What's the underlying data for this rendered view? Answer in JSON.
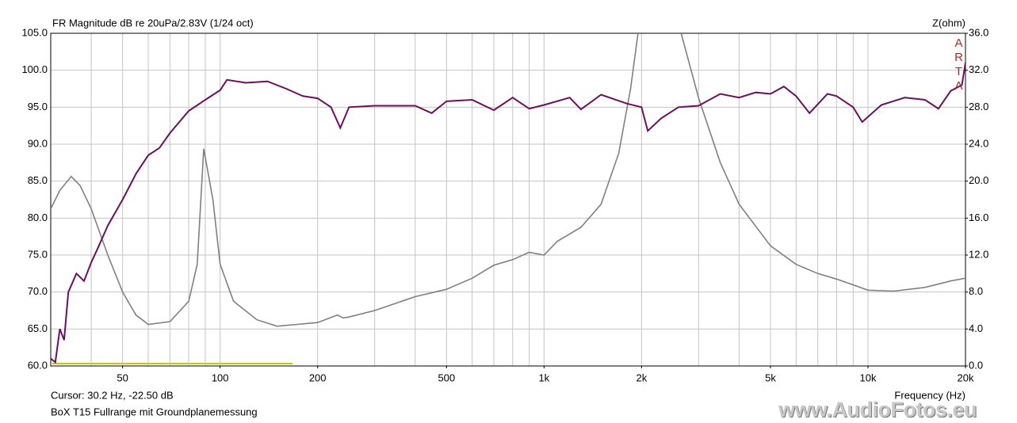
{
  "chart_data": {
    "type": "line",
    "title": "FR Magnitude dB re 20uPa/2.83V (1/24 oct)",
    "y2label": "Z(ohm)",
    "xlabel": "Frequency (Hz)",
    "logo": "ARTA",
    "cursor": "Cursor: 30.2 Hz, -22.50 dB",
    "caption": "BoX T15 Fullrange mit Groundplanemessung",
    "watermark": "www.AudioFotos.eu",
    "xlog": true,
    "grid": true,
    "xlim": [
      30,
      20000
    ],
    "ylim": [
      60,
      105
    ],
    "y2lim": [
      0,
      36
    ],
    "xticks": [
      50,
      100,
      200,
      500,
      {
        "value": 1000,
        "label": "1k"
      },
      {
        "value": 2000,
        "label": "2k"
      },
      {
        "value": 5000,
        "label": "5k"
      },
      {
        "value": 10000,
        "label": "10k"
      },
      {
        "value": 20000,
        "label": "20k"
      }
    ],
    "xgrid": [
      40,
      50,
      60,
      70,
      80,
      90,
      100,
      200,
      300,
      400,
      500,
      600,
      700,
      800,
      900,
      1000,
      2000,
      3000,
      4000,
      5000,
      6000,
      7000,
      8000,
      9000,
      10000
    ],
    "yticks": [
      {
        "value": 60,
        "label": "60.0"
      },
      {
        "value": 65,
        "label": "65.0"
      },
      {
        "value": 70,
        "label": "70.0"
      },
      {
        "value": 75,
        "label": "75.0"
      },
      {
        "value": 80,
        "label": "80.0"
      },
      {
        "value": 85,
        "label": "85.0"
      },
      {
        "value": 90,
        "label": "90.0"
      },
      {
        "value": 95,
        "label": "95.0"
      },
      {
        "value": 100,
        "label": "100.0"
      },
      {
        "value": 105,
        "label": "105.0"
      }
    ],
    "y2ticks": [
      {
        "value": 0,
        "label": "0.0"
      },
      {
        "value": 4,
        "label": "4.0"
      },
      {
        "value": 8,
        "label": "8.0"
      },
      {
        "value": 12,
        "label": "12.0"
      },
      {
        "value": 16,
        "label": "16.0"
      },
      {
        "value": 20,
        "label": "20.0"
      },
      {
        "value": 24,
        "label": "24.0"
      },
      {
        "value": 28,
        "label": "28.0"
      },
      {
        "value": 32,
        "label": "32.0"
      },
      {
        "value": 36,
        "label": "36.0"
      }
    ],
    "series": [
      {
        "color": "#6b0f5e",
        "x": [
          30,
          31,
          32,
          33,
          34,
          36,
          38,
          40,
          42,
          45,
          50,
          55,
          60,
          65,
          70,
          80,
          90,
          100,
          105,
          120,
          140,
          160,
          180,
          200,
          220,
          235,
          250,
          300,
          400,
          450,
          500,
          600,
          700,
          800,
          900,
          1000,
          1200,
          1300,
          1500,
          1800,
          2000,
          2090,
          2300,
          2600,
          3000,
          3500,
          4000,
          4500,
          5000,
          5500,
          6000,
          6600,
          7500,
          8000,
          9000,
          9600,
          11000,
          13000,
          15000,
          16500,
          18000,
          19500,
          20000
        ],
        "values": [
          61,
          60.5,
          65,
          63.5,
          70,
          72.5,
          71.5,
          74,
          76,
          79,
          82.5,
          86,
          88.5,
          89.5,
          91.5,
          94.5,
          96,
          97.3,
          98.7,
          98.3,
          98.5,
          97.5,
          96.5,
          96.2,
          95,
          92.2,
          95,
          95.2,
          95.2,
          94.2,
          95.8,
          96,
          94.6,
          96.3,
          94.8,
          95.3,
          96.3,
          94.7,
          96.7,
          95.5,
          95,
          91.8,
          93.5,
          95,
          95.2,
          96.8,
          96.3,
          97,
          96.8,
          97.8,
          96.5,
          94.2,
          96.8,
          96.5,
          95,
          93,
          95.3,
          96.3,
          96,
          94.8,
          97.2,
          98,
          101
        ]
      },
      {
        "color": "#808080",
        "axis": "y2",
        "x": [
          30,
          32,
          34.7,
          37,
          40,
          45,
          50,
          55,
          60,
          70,
          80,
          85,
          89,
          95,
          100,
          110,
          130,
          150,
          200,
          230,
          240,
          250,
          300,
          400,
          500,
          600,
          700,
          800,
          900,
          1000,
          1100,
          1300,
          1500,
          1700,
          1850,
          1950,
          2200,
          2650,
          3000,
          3500,
          4000,
          5000,
          6000,
          7000,
          8000,
          10000,
          12000,
          15000,
          18000,
          20000
        ],
        "values": [
          17,
          19,
          20.5,
          19.5,
          17,
          12,
          8,
          5.5,
          4.5,
          4.8,
          7,
          11,
          23.5,
          18,
          11,
          7,
          5,
          4.3,
          4.7,
          5.5,
          5.2,
          5.3,
          6,
          7.5,
          8.3,
          9.5,
          10.9,
          11.5,
          12.3,
          12,
          13.5,
          15,
          17.5,
          23,
          30,
          36,
          null,
          36,
          29,
          22,
          17.5,
          13,
          11,
          10,
          9.4,
          8.2,
          8.1,
          8.5,
          9.2,
          9.5
        ]
      }
    ]
  }
}
